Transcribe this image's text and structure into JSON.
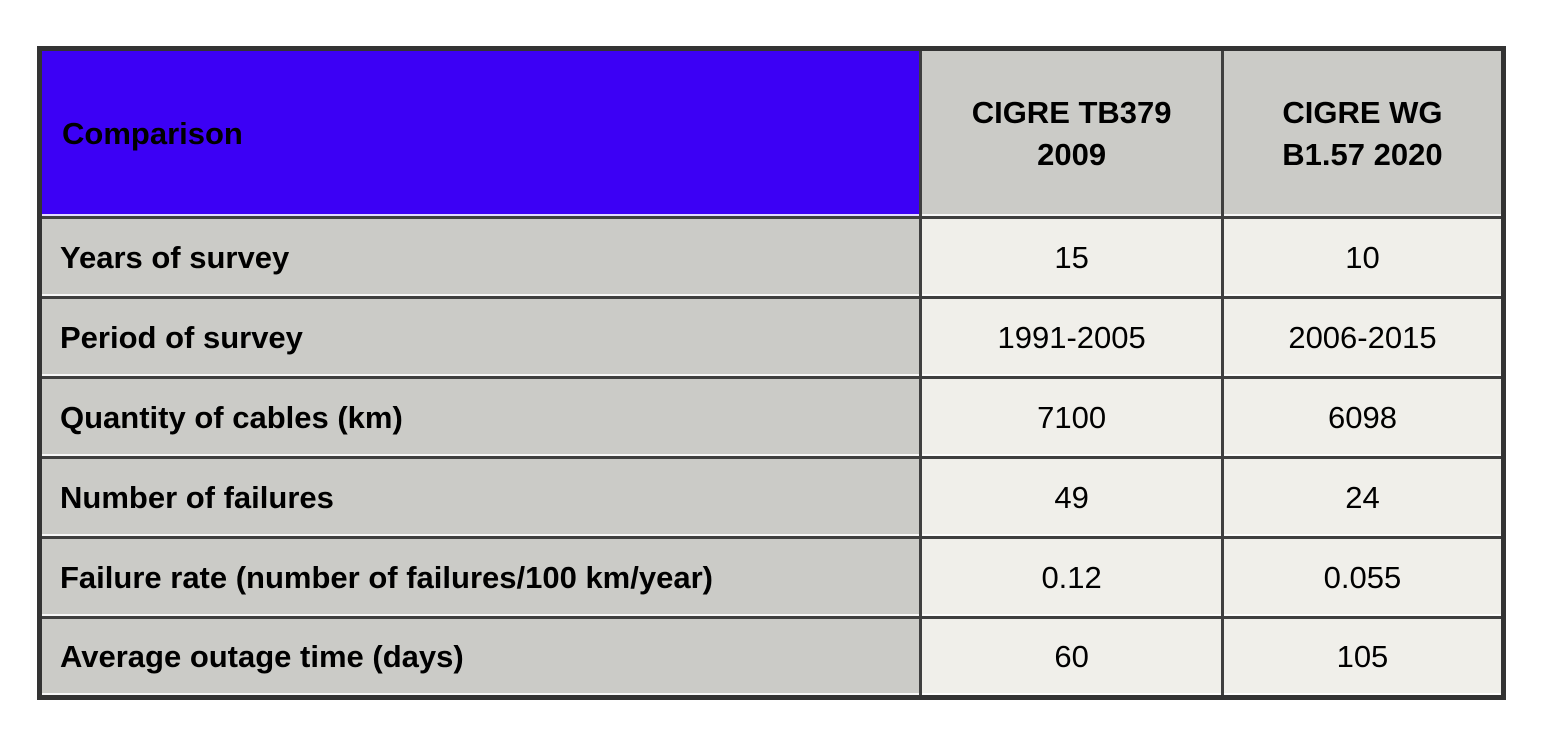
{
  "table": {
    "corner_header": "Comparison",
    "columns": [
      "CIGRE TB379 2009",
      "CIGRE WG B1.57 2020"
    ],
    "rows": [
      {
        "label": "Years of survey",
        "values": [
          "15",
          "10"
        ]
      },
      {
        "label": "Period of survey",
        "values": [
          "1991-2005",
          "2006-2015"
        ]
      },
      {
        "label": "Quantity of cables (km)",
        "values": [
          "7100",
          "6098"
        ]
      },
      {
        "label": "Number of failures",
        "values": [
          "49",
          "24"
        ]
      },
      {
        "label": "Failure rate (number of failures/100 km/year)",
        "values": [
          "0.12",
          "0.055"
        ]
      },
      {
        "label": "Average outage time (days)",
        "values": [
          "60",
          "105"
        ]
      }
    ],
    "colors": {
      "corner_background": "#3C00F5",
      "corner_text": "#FFFFFF",
      "header_background": "#CBCBC7",
      "label_background": "#CBCBC7",
      "value_background": "#F0EFEA",
      "border": "#3F3F3F",
      "text": "#000000"
    }
  },
  "chart_data": {
    "type": "table",
    "title": "Comparison",
    "columns": [
      "Comparison",
      "CIGRE TB379 2009",
      "CIGRE WG B1.57 2020"
    ],
    "rows": [
      [
        "Years of survey",
        "15",
        "10"
      ],
      [
        "Period of survey",
        "1991-2005",
        "2006-2015"
      ],
      [
        "Quantity of cables (km)",
        "7100",
        "6098"
      ],
      [
        "Number of failures",
        "49",
        "24"
      ],
      [
        "Failure rate (number of failures/100 km/year)",
        "0.12",
        "0.055"
      ],
      [
        "Average outage time (days)",
        "60",
        "105"
      ]
    ],
    "notes": {
      "years_of_survey": [
        15,
        10
      ],
      "period_of_survey": [
        "1991-2005",
        "2006-2015"
      ],
      "quantity_of_cables_km": [
        7100,
        6098
      ],
      "number_of_failures": [
        49,
        24
      ],
      "failure_rate_per_100km_year": [
        0.12,
        0.055
      ],
      "average_outage_time_days": [
        60,
        105
      ]
    }
  }
}
